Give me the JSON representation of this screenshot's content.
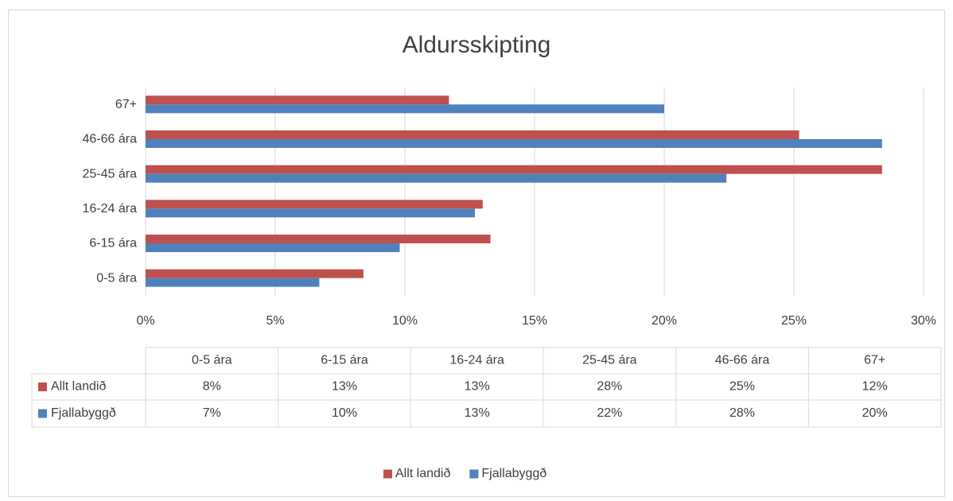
{
  "chart_data": {
    "type": "bar",
    "orientation": "horizontal",
    "title": "Aldursskipting",
    "categories": [
      "0-5 ára",
      "6-15 ára",
      "16-24 ára",
      "25-45 ára",
      "46-66 ára",
      "67+"
    ],
    "series": [
      {
        "name": "Allt landið",
        "color": "#c0504d",
        "values": [
          8.4,
          13.3,
          13.0,
          28.4,
          25.2,
          11.7
        ],
        "value_labels": [
          "8%",
          "13%",
          "13%",
          "28%",
          "25%",
          "12%"
        ]
      },
      {
        "name": "Fjallabyggð",
        "color": "#4f81bd",
        "values": [
          6.7,
          9.8,
          12.7,
          22.4,
          28.4,
          20.0
        ],
        "value_labels": [
          "7%",
          "10%",
          "13%",
          "22%",
          "28%",
          "20%"
        ]
      }
    ],
    "xlim": [
      0,
      30
    ],
    "xticks": [
      {
        "value": 0,
        "label": "0%"
      },
      {
        "value": 5,
        "label": "5%"
      },
      {
        "value": 10,
        "label": "10%"
      },
      {
        "value": 15,
        "label": "15%"
      },
      {
        "value": 20,
        "label": "20%"
      },
      {
        "value": 25,
        "label": "25%"
      },
      {
        "value": 30,
        "label": "30%"
      }
    ],
    "grid": true,
    "legend": "bottom",
    "data_table": true
  }
}
